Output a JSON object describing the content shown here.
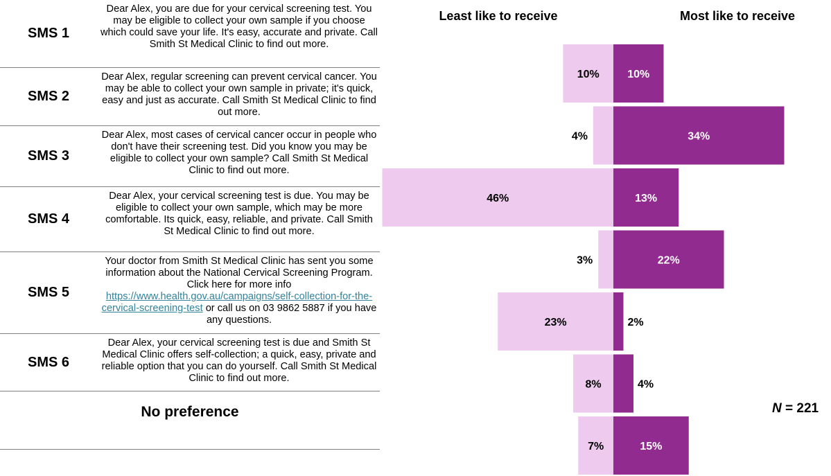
{
  "rows": [
    {
      "label": "SMS 1",
      "text": "Dear Alex, you are due for your cervical screening test. You may be eligible to collect your own sample if you choose which could save your life. It's easy, accurate and private. Call Smith St Medical Clinic to find out more."
    },
    {
      "label": "SMS 2",
      "text": "Dear Alex, regular screening can prevent cervical cancer. You may be able to collect your own sample in private; it's quick, easy and just as accurate. Call Smith St Medical Clinic to find out more."
    },
    {
      "label": "SMS 3",
      "text": "Dear Alex, most cases of cervical cancer occur in people who don't have their screening test. Did you know you may be eligible to collect your own sample? Call Smith St Medical Clinic to find out more."
    },
    {
      "label": "SMS 4",
      "text": "Dear Alex, your cervical screening test is due. You may be eligible to collect your own sample, which may be more comfortable. Its quick, easy, reliable, and private. Call Smith St Medical Clinic to find out more."
    },
    {
      "label": "SMS 5",
      "text_before": "Your doctor from Smith St Medical Clinic has sent you some information about the National Cervical Screening Program. Click here for more info",
      "link": "https://www.health.gov.au/campaigns/self-collection-for-the-cervical-screening-test",
      "text_after": " or call us on 03 9862 5887 if you have any questions."
    },
    {
      "label": "SMS 6",
      "text": "Dear Alex, your cervical screening test is due and Smith St Medical Clinic offers self-collection; a quick, easy, private and reliable option that you can do yourself. Call Smith St Medical Clinic to find out more."
    }
  ],
  "no_preference_label": "No preference",
  "n_prefix": "N",
  "n_suffix": " = 221",
  "colors": {
    "least": "#eecbee",
    "most": "#922b8f",
    "least_text": "#000000",
    "most_text": "#ffffff"
  },
  "chart_data": {
    "type": "bar",
    "orientation": "horizontal-diverging",
    "categories": [
      "SMS 1",
      "SMS 2",
      "SMS 3",
      "SMS 4",
      "SMS 5",
      "SMS 6",
      "No preference"
    ],
    "series": [
      {
        "name": "Least like to receive",
        "values": [
          10,
          4,
          46,
          3,
          23,
          8,
          7
        ]
      },
      {
        "name": "Most like to receive",
        "values": [
          10,
          34,
          13,
          22,
          2,
          4,
          15
        ]
      }
    ],
    "value_suffix": "%"
  }
}
